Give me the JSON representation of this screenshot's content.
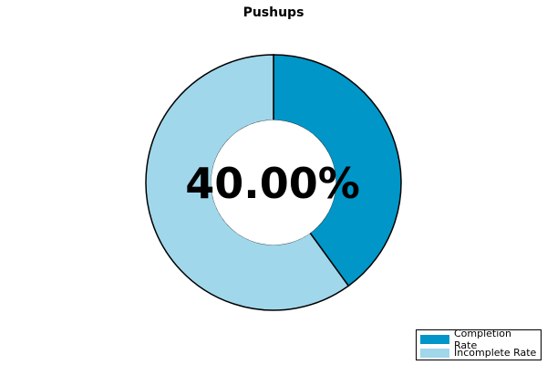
{
  "chart_data": {
    "type": "pie",
    "title": "Pushups",
    "center_label": "40.00%",
    "categories": [
      "Completion Rate",
      "Incomplete Rate"
    ],
    "values": [
      40,
      60
    ],
    "colors": [
      "#0096c8",
      "#a0d7eb"
    ],
    "legend_position": "bottom-right"
  }
}
